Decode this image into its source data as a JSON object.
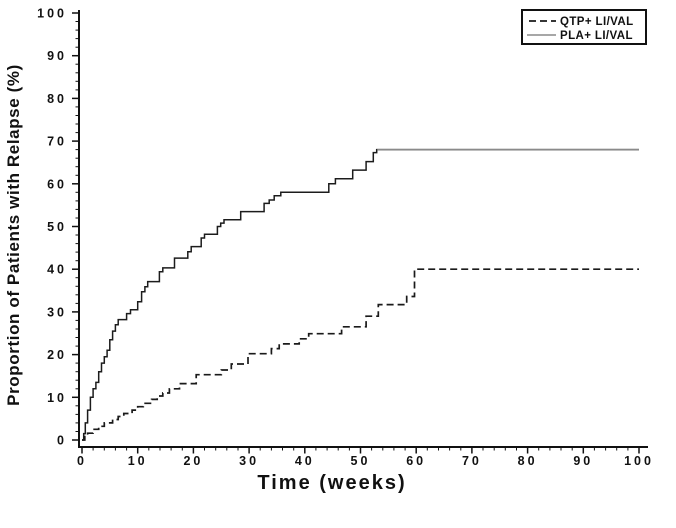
{
  "figure": {
    "background": "#ffffff",
    "ink_color": "#111111"
  },
  "chart_data": {
    "type": "line",
    "subtype": "kaplan-meier-step",
    "title": "",
    "xlabel": "Time (weeks)",
    "ylabel": "Proportion of Patients with Relapse (%)",
    "xlim": [
      0,
      100
    ],
    "ylim": [
      0,
      100
    ],
    "x_major_ticks": [
      0,
      10,
      20,
      30,
      40,
      50,
      60,
      70,
      80,
      90,
      100
    ],
    "y_major_ticks": [
      0,
      10,
      20,
      30,
      40,
      50,
      60,
      70,
      80,
      90,
      100
    ],
    "minor_tick_step": 2,
    "grid": false,
    "legend": {
      "position": "top-right-inside",
      "entries": [
        {
          "label": "QTP+ LI/VAL",
          "line_style": "dashed",
          "color": "#1a1a1a"
        },
        {
          "label": "PLA+ LI/VAL",
          "line_style": "solid",
          "color": "#8a8a8a"
        }
      ]
    },
    "series": [
      {
        "id": "qtp-curve",
        "name": "QTP+ LI/VAL",
        "style": "dashed",
        "color": "#1a1a1a",
        "points": [
          [
            0,
            0
          ],
          [
            0.5,
            0.8
          ],
          [
            1,
            1.6
          ],
          [
            2,
            2.5
          ],
          [
            3,
            3.2
          ],
          [
            4,
            4
          ],
          [
            5.5,
            4.8
          ],
          [
            6.5,
            5.5
          ],
          [
            7.5,
            6.2
          ],
          [
            9,
            7
          ],
          [
            10,
            7.8
          ],
          [
            11,
            8.6
          ],
          [
            12.5,
            9.5
          ],
          [
            13.5,
            10.3
          ],
          [
            14.5,
            11
          ],
          [
            15.7,
            12
          ],
          [
            17.5,
            13.2
          ],
          [
            20.5,
            15.3
          ],
          [
            25,
            16.4
          ],
          [
            26.8,
            17.8
          ],
          [
            29.8,
            20.2
          ],
          [
            34,
            21.4
          ],
          [
            35.4,
            22.5
          ],
          [
            39,
            23.7
          ],
          [
            40.7,
            24.9
          ],
          [
            46.6,
            26.5
          ],
          [
            51,
            29
          ],
          [
            53.2,
            31.7
          ],
          [
            58.3,
            33.6
          ],
          [
            59.7,
            40
          ],
          [
            100,
            40
          ]
        ]
      },
      {
        "id": "pla-curve",
        "name": "PLA+ LI/VAL",
        "style": "solid",
        "color": "#1c1c1c",
        "overlay": {
          "from_week": 53,
          "to_week": 100,
          "pct": 68,
          "color": "#8a8a8a"
        },
        "points": [
          [
            0,
            0
          ],
          [
            0.3,
            1.5
          ],
          [
            0.6,
            4
          ],
          [
            1,
            7
          ],
          [
            1.5,
            10
          ],
          [
            2,
            12
          ],
          [
            2.5,
            13.5
          ],
          [
            3,
            16
          ],
          [
            3.5,
            18
          ],
          [
            4,
            19.5
          ],
          [
            4.5,
            21
          ],
          [
            5,
            23.5
          ],
          [
            5.5,
            25.5
          ],
          [
            6,
            27
          ],
          [
            6.5,
            28.2
          ],
          [
            8,
            29.6
          ],
          [
            8.7,
            30.5
          ],
          [
            10,
            32.4
          ],
          [
            10.7,
            34.7
          ],
          [
            11.3,
            35.9
          ],
          [
            11.8,
            37.1
          ],
          [
            13.9,
            39.4
          ],
          [
            14.5,
            40.3
          ],
          [
            16.6,
            42.6
          ],
          [
            19,
            44.1
          ],
          [
            19.6,
            45.3
          ],
          [
            21.4,
            47.3
          ],
          [
            22,
            48.2
          ],
          [
            24.3,
            50
          ],
          [
            24.9,
            50.8
          ],
          [
            25.5,
            51.6
          ],
          [
            28.5,
            53.5
          ],
          [
            32.7,
            55.4
          ],
          [
            33.6,
            56.2
          ],
          [
            34.5,
            57.2
          ],
          [
            35.7,
            58
          ],
          [
            44.3,
            60
          ],
          [
            45.5,
            61.2
          ],
          [
            48.6,
            63.2
          ],
          [
            51,
            65.2
          ],
          [
            52.3,
            67.3
          ],
          [
            52.9,
            68
          ],
          [
            100,
            68
          ]
        ]
      }
    ]
  }
}
